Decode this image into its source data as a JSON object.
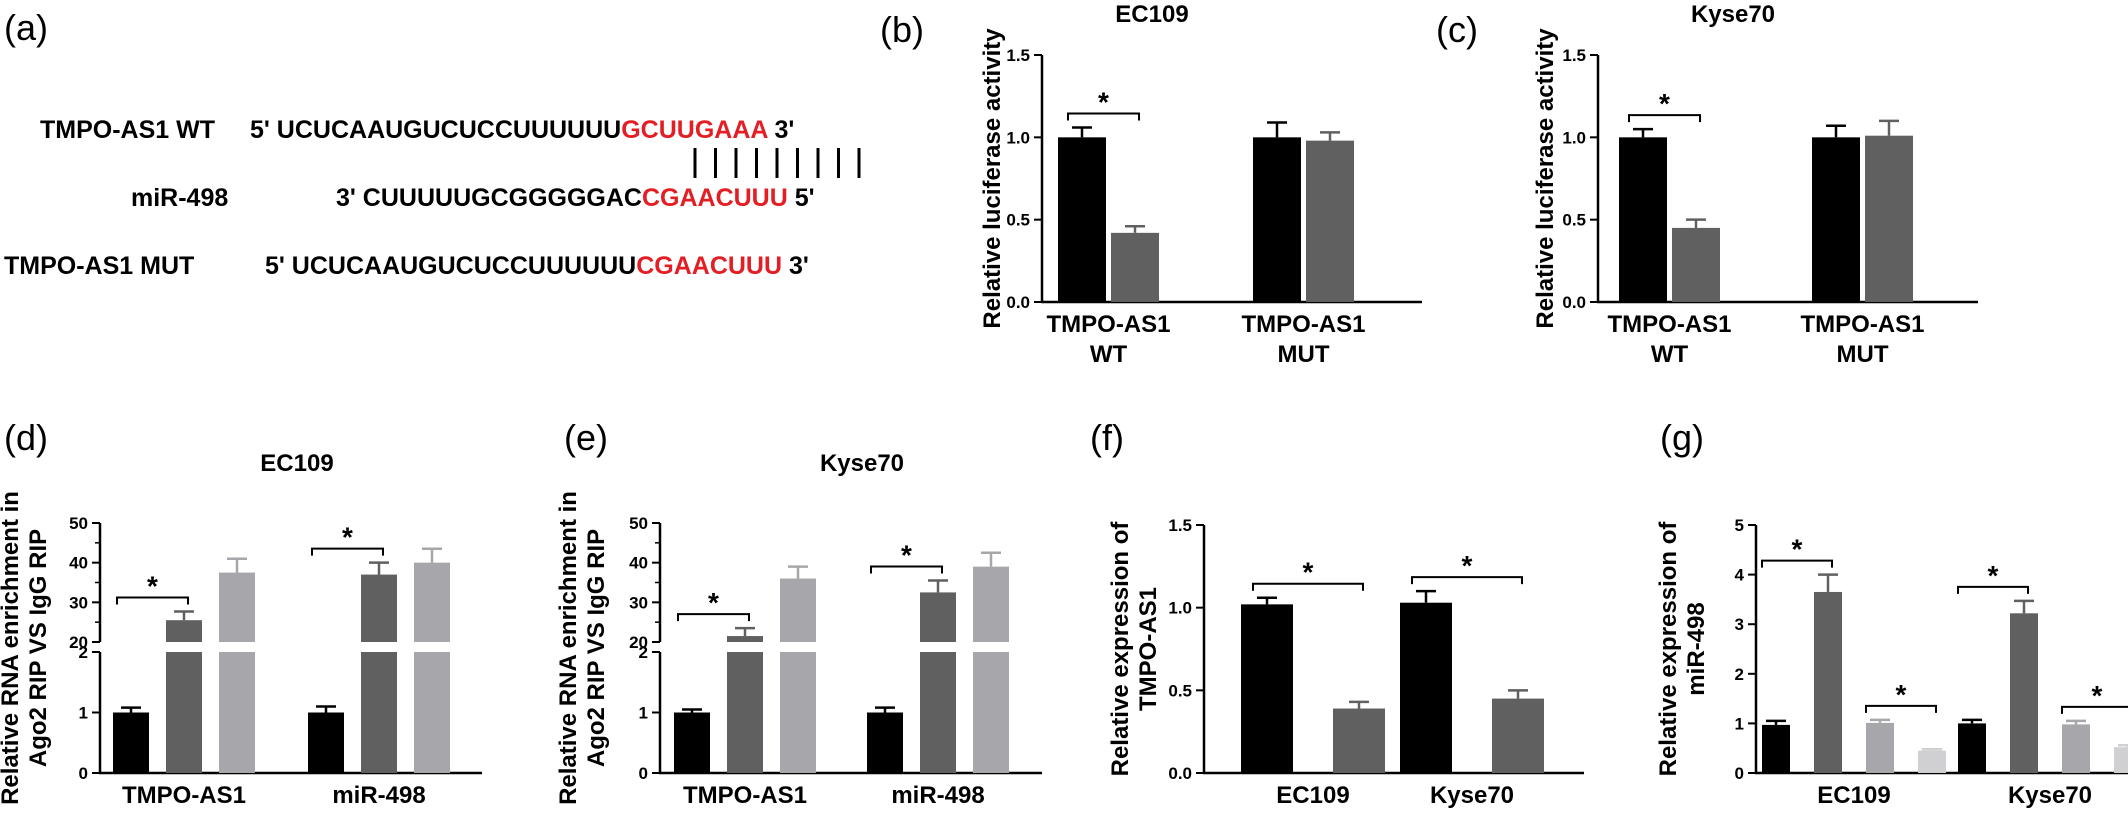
{
  "panel_a": {
    "label": "(a)",
    "rows": [
      {
        "name": "TMPO-AS1 WT",
        "prefix": "5' UCUCAAUGUCUCCUUUUUU",
        "highlight": "GCUUGAAA",
        "suffix": " 3'"
      },
      {
        "name": "miR-498",
        "prefix": "3' CUUUUUGCGGGGGAC",
        "highlight": "CGAACUUU",
        "suffix": " 5'"
      },
      {
        "name": "TMPO-AS1 MUT",
        "prefix": "5' UCUCAAUGUCUCCUUUUUU",
        "highlight": "CGAACUUU",
        "suffix": " 3'"
      }
    ],
    "colors": {
      "highlight": "#e31e24"
    },
    "pairing_lines": 9
  },
  "chart_data": [
    {
      "id": "b",
      "label": "(b)",
      "type": "bar",
      "title": "EC109",
      "ylabel": "Relative luciferase activity",
      "categories": [
        "TMPO-AS1\nWT",
        "TMPO-AS1\nMUT"
      ],
      "ylim": [
        0,
        1.5
      ],
      "yticks": [
        "0.0",
        "0.5",
        "1.0",
        "1.5"
      ],
      "series": [
        {
          "values": [
            1.0,
            1.0
          ],
          "errors": [
            0.06,
            0.09
          ],
          "color": "#000000"
        },
        {
          "values": [
            0.42,
            0.98
          ],
          "errors": [
            0.04,
            0.05
          ],
          "color": "#606060"
        }
      ],
      "significance": [
        {
          "group": 0,
          "from": 0,
          "to": 1,
          "text": "*"
        }
      ]
    },
    {
      "id": "c",
      "label": "(c)",
      "type": "bar",
      "title": "Kyse70",
      "ylabel": "Relative luciferase activity",
      "categories": [
        "TMPO-AS1\nWT",
        "TMPO-AS1\nMUT"
      ],
      "ylim": [
        0,
        1.5
      ],
      "yticks": [
        "0.0",
        "0.5",
        "1.0",
        "1.5"
      ],
      "series": [
        {
          "values": [
            1.0,
            1.0
          ],
          "errors": [
            0.05,
            0.07
          ],
          "color": "#000000"
        },
        {
          "values": [
            0.45,
            1.01
          ],
          "errors": [
            0.05,
            0.09
          ],
          "color": "#606060"
        }
      ],
      "significance": [
        {
          "group": 0,
          "from": 0,
          "to": 1,
          "text": "*"
        }
      ]
    },
    {
      "id": "d",
      "label": "(d)",
      "type": "bar",
      "title": "EC109",
      "ylabel": "Relative RNA enrichment in\nAgo2 RIP VS IgG RIP",
      "categories": [
        "TMPO-AS1",
        "miR-498"
      ],
      "broken_axis": {
        "lower": [
          0,
          2
        ],
        "upper": [
          20,
          50
        ]
      },
      "yticks_lower": [
        "0",
        "1",
        "2"
      ],
      "yticks_upper": [
        "20",
        "30",
        "40",
        "50"
      ],
      "series": [
        {
          "values": [
            1.0,
            1.0
          ],
          "errors": [
            0.08,
            0.1
          ],
          "color": "#000000"
        },
        {
          "values": [
            25.5,
            37.0
          ],
          "errors": [
            2.2,
            3.0
          ],
          "color": "#606060"
        },
        {
          "values": [
            37.5,
            40.0
          ],
          "errors": [
            3.5,
            3.5
          ],
          "color": "#a6a6ab"
        }
      ],
      "significance": [
        {
          "group": 0,
          "from": 0,
          "to": 1,
          "text": "*"
        },
        {
          "group": 1,
          "from": 0,
          "to": 1,
          "text": "*"
        }
      ]
    },
    {
      "id": "e",
      "label": "(e)",
      "type": "bar",
      "title": "Kyse70",
      "ylabel": "Relative RNA enrichment in\nAgo2 RIP VS IgG RIP",
      "categories": [
        "TMPO-AS1",
        "miR-498"
      ],
      "broken_axis": {
        "lower": [
          0,
          2
        ],
        "upper": [
          20,
          50
        ]
      },
      "yticks_lower": [
        "0",
        "1",
        "2"
      ],
      "yticks_upper": [
        "20",
        "30",
        "40",
        "50"
      ],
      "series": [
        {
          "values": [
            1.0,
            1.0
          ],
          "errors": [
            0.05,
            0.08
          ],
          "color": "#000000"
        },
        {
          "values": [
            21.5,
            32.5
          ],
          "errors": [
            2.0,
            3.0
          ],
          "color": "#606060"
        },
        {
          "values": [
            36.0,
            39.0
          ],
          "errors": [
            3.0,
            3.5
          ],
          "color": "#a6a6ab"
        }
      ],
      "significance": [
        {
          "group": 0,
          "from": 0,
          "to": 1,
          "text": "*"
        },
        {
          "group": 1,
          "from": 0,
          "to": 1,
          "text": "*"
        }
      ]
    },
    {
      "id": "f",
      "label": "(f)",
      "type": "bar",
      "title": "",
      "ylabel": "Relative expression of\nTMPO-AS1",
      "categories": [
        "EC109",
        "Kyse70"
      ],
      "ylim": [
        0,
        1.5
      ],
      "yticks": [
        "0.0",
        "0.5",
        "1.0",
        "1.5"
      ],
      "series": [
        {
          "values": [
            1.02,
            1.03
          ],
          "errors": [
            0.04,
            0.07
          ],
          "color": "#000000"
        },
        {
          "values": [
            0.39,
            0.45
          ],
          "errors": [
            0.04,
            0.05
          ],
          "color": "#606060"
        }
      ],
      "significance": [
        {
          "group": 0,
          "from": 0,
          "to": 1,
          "text": "*"
        },
        {
          "group": 1,
          "from": 0,
          "to": 1,
          "text": "*"
        }
      ]
    },
    {
      "id": "g",
      "label": "(g)",
      "type": "bar",
      "title": "",
      "ylabel": "Relative expression of\nmiR-498",
      "categories": [
        "EC109",
        "Kyse70"
      ],
      "ylim": [
        0,
        5
      ],
      "yticks": [
        "0",
        "1",
        "2",
        "3",
        "4",
        "5"
      ],
      "series": [
        {
          "values": [
            0.97,
            1.0
          ],
          "errors": [
            0.08,
            0.07
          ],
          "color": "#000000"
        },
        {
          "values": [
            3.65,
            3.22
          ],
          "errors": [
            0.35,
            0.25
          ],
          "color": "#606060"
        },
        {
          "values": [
            1.01,
            0.98
          ],
          "errors": [
            0.06,
            0.07
          ],
          "color": "#a6a6ab"
        },
        {
          "values": [
            0.45,
            0.52
          ],
          "errors": [
            0.03,
            0.04
          ],
          "color": "#d0d0d2"
        }
      ],
      "significance": [
        {
          "group": 0,
          "from": 0,
          "to": 1,
          "text": "*"
        },
        {
          "group": 0,
          "from": 2,
          "to": 3,
          "text": "*"
        },
        {
          "group": 1,
          "from": 0,
          "to": 1,
          "text": "*"
        },
        {
          "group": 1,
          "from": 2,
          "to": 3,
          "text": "*"
        }
      ]
    }
  ]
}
